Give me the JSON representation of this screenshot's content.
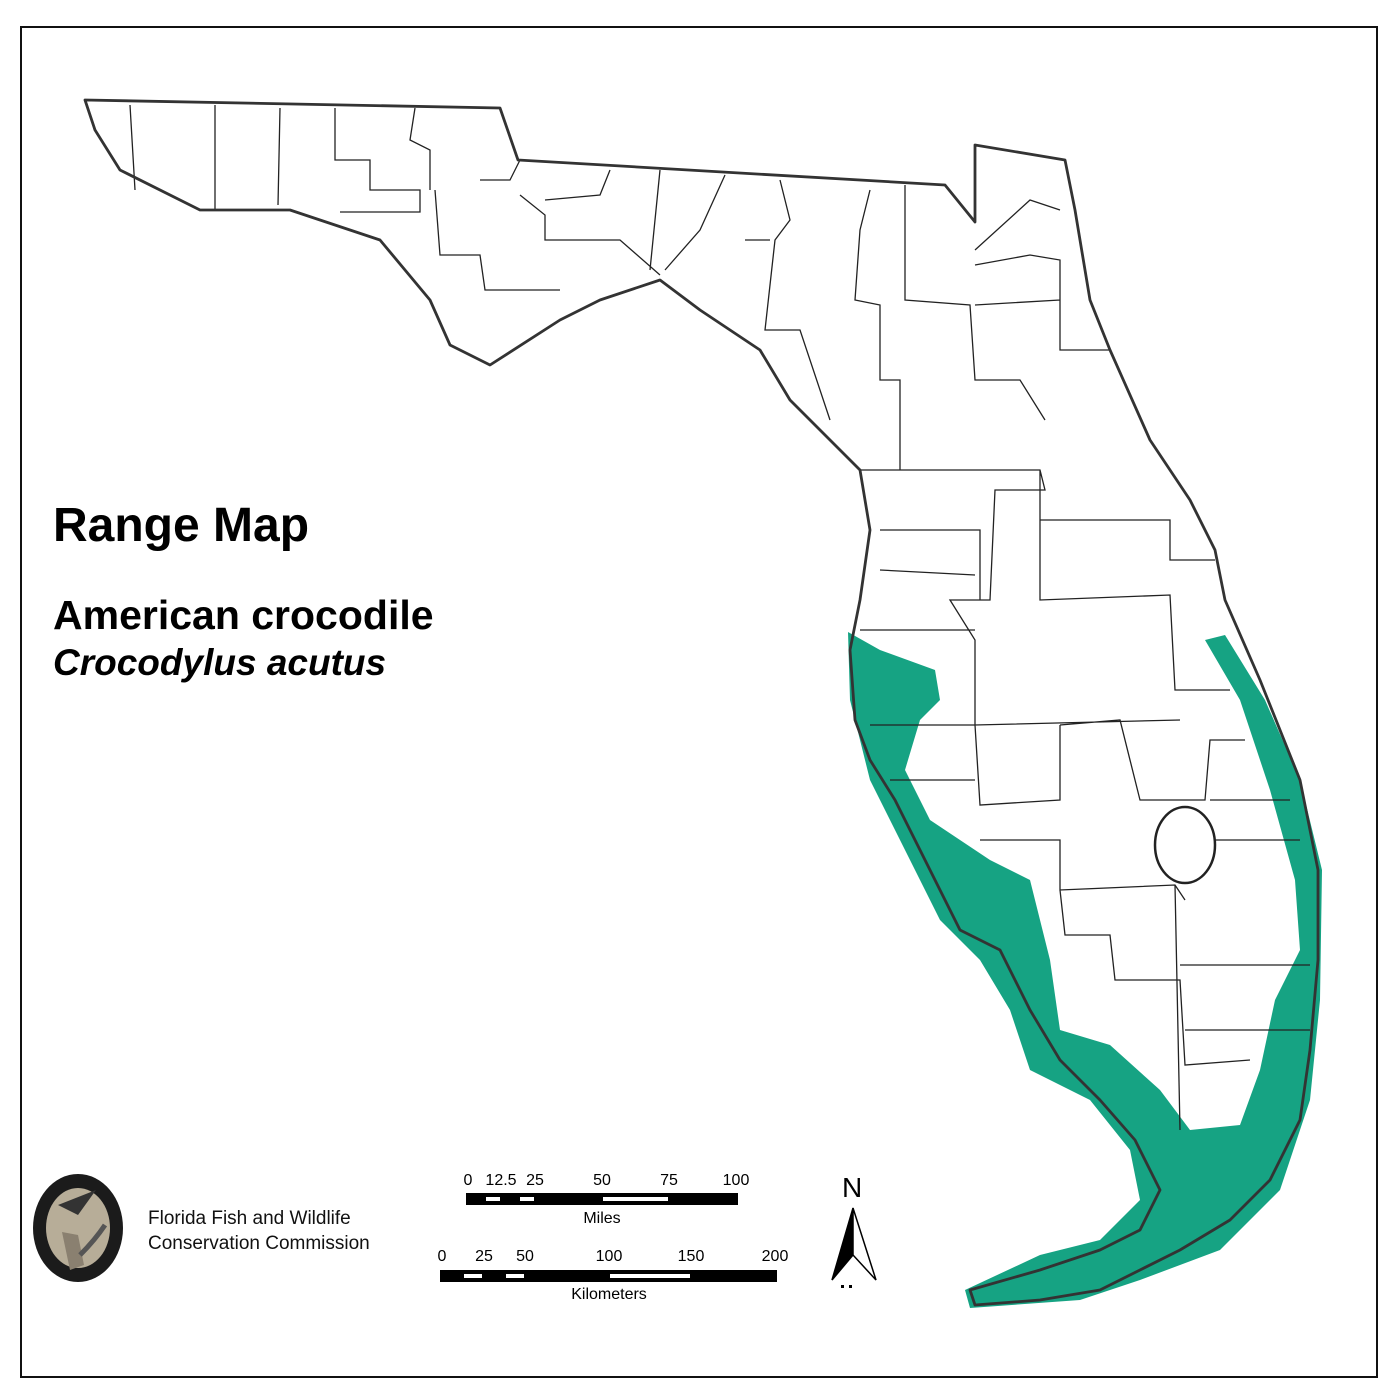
{
  "map": {
    "title": "Range Map",
    "common_name": "American crocodile",
    "scientific_name": "Crocodylus acutus",
    "range_color": "#16a383",
    "land_color": "#ffffff",
    "boundary_color": "#333333"
  },
  "agency": {
    "line1": "Florida Fish and Wildlife",
    "line2": "Conservation Commission",
    "logo_text": "FLORIDA FISH AND WILDLIFE CONSERVATION COMMISSION"
  },
  "scale_miles": {
    "ticks": [
      "0",
      "12.5",
      "25",
      "50",
      "75",
      "100"
    ],
    "unit": "Miles"
  },
  "scale_km": {
    "ticks": [
      "0",
      "25",
      "50",
      "100",
      "150",
      "200"
    ],
    "unit": "Kilometers"
  },
  "north_arrow": {
    "label": "N",
    "icon": "north-arrow-icon"
  }
}
